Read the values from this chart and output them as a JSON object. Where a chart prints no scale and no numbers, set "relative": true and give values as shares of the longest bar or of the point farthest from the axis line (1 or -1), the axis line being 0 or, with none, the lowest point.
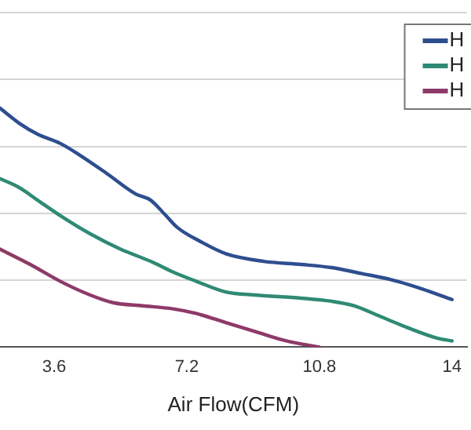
{
  "chart_data": {
    "type": "line",
    "xlabel": "Air Flow(CFM)",
    "relative": true,
    "xlim": [
      2.13,
      14.8
    ],
    "xticks": [
      3.6,
      7.2,
      10.8,
      {
        "value": 14.4,
        "label": "14"
      }
    ],
    "grid": "y",
    "legend": "top right",
    "marker": "none",
    "line_style": "solid",
    "series": [
      {
        "name": "H",
        "color": "#2e4e8f",
        "x": [
          2.13,
          2.66,
          3.15,
          3.76,
          4.25,
          4.99,
          5.81,
          6.22,
          6.63,
          6.95,
          7.57,
          8.26,
          9.29,
          10.31,
          11.13,
          11.95,
          12.76,
          13.58,
          14.4
        ],
        "values": [
          1,
          0.936,
          0.891,
          0.853,
          0.808,
          0.731,
          0.641,
          0.615,
          0.551,
          0.5,
          0.442,
          0.391,
          0.359,
          0.346,
          0.333,
          0.308,
          0.282,
          0.244,
          0.199
        ]
      },
      {
        "name": "H",
        "color": "#2e8a74",
        "x": [
          2.13,
          2.66,
          3.15,
          3.76,
          4.58,
          5.4,
          6.22,
          6.83,
          7.45,
          8.26,
          9.08,
          10.31,
          11.13,
          11.74,
          12.35,
          13.17,
          13.99,
          14.4
        ],
        "values": [
          0.705,
          0.667,
          0.615,
          0.551,
          0.474,
          0.41,
          0.359,
          0.314,
          0.276,
          0.231,
          0.218,
          0.205,
          0.192,
          0.173,
          0.135,
          0.083,
          0.038,
          0.026
        ]
      },
      {
        "name": "H",
        "color": "#8e3a68",
        "x": [
          2.13,
          2.95,
          3.76,
          4.58,
          5.2,
          6.01,
          6.83,
          7.45,
          8.26,
          9.08,
          9.9,
          10.8
        ],
        "values": [
          0.41,
          0.346,
          0.276,
          0.218,
          0.186,
          0.173,
          0.16,
          0.141,
          0.103,
          0.064,
          0.026,
          0
        ]
      }
    ]
  }
}
